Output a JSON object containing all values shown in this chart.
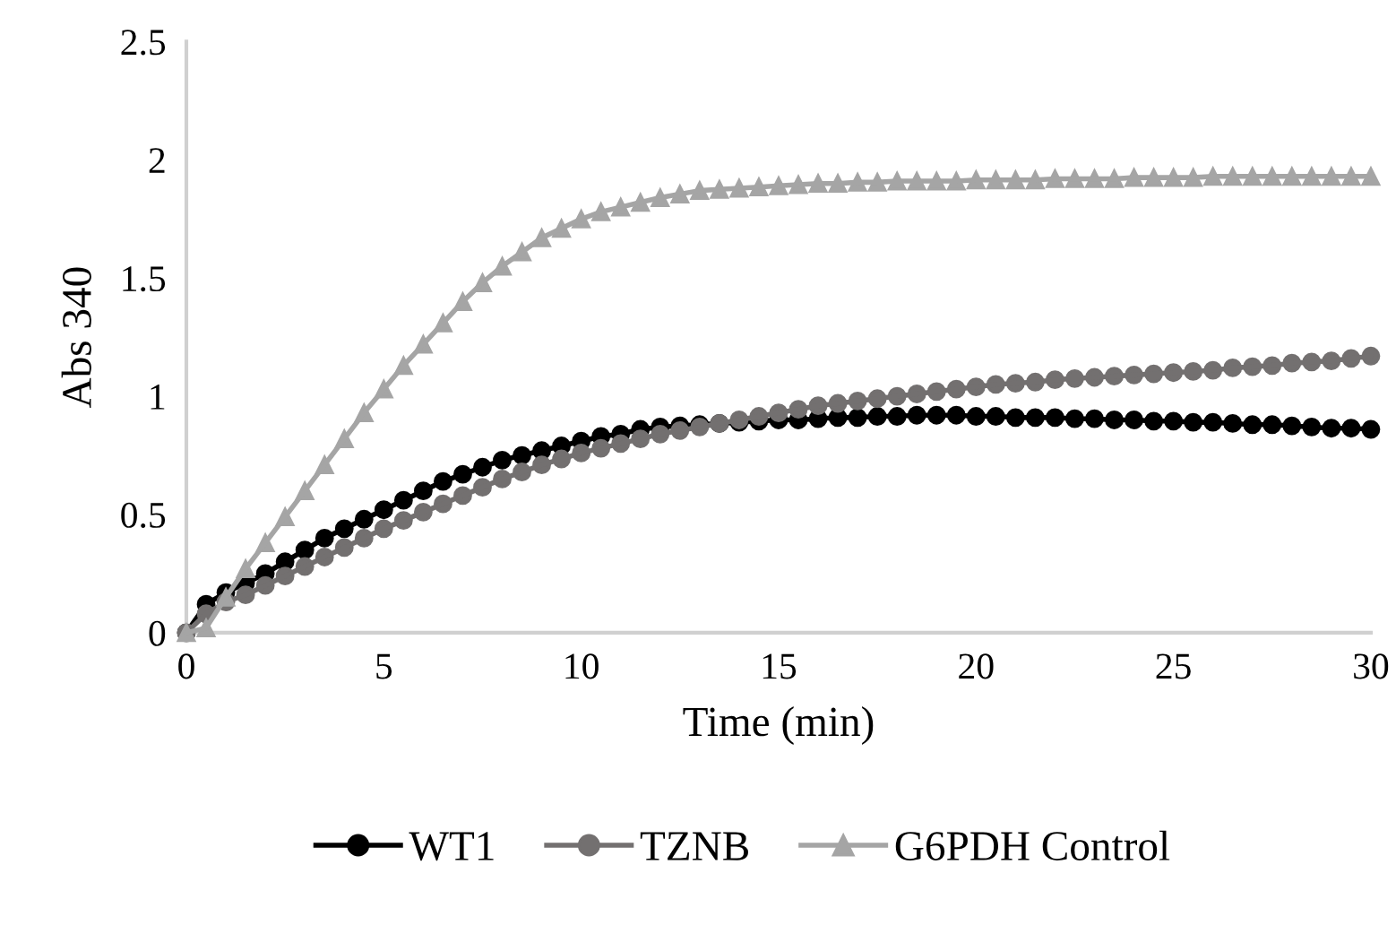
{
  "chart_data": {
    "type": "line",
    "xlabel": "Time (min)",
    "ylabel": "Abs 340",
    "x": [
      0,
      0.5,
      1,
      1.5,
      2,
      2.5,
      3,
      3.5,
      4,
      4.5,
      5,
      5.5,
      6,
      6.5,
      7,
      7.5,
      8,
      8.5,
      9,
      9.5,
      10,
      10.5,
      11,
      11.5,
      12,
      12.5,
      13,
      13.5,
      14,
      14.5,
      15,
      15.5,
      16,
      16.5,
      17,
      17.5,
      18,
      18.5,
      19,
      19.5,
      20,
      20.5,
      21,
      21.5,
      22,
      22.5,
      23,
      23.5,
      24,
      24.5,
      25,
      25.5,
      26,
      26.5,
      27,
      27.5,
      28,
      28.5,
      29,
      29.5,
      30
    ],
    "series": [
      {
        "name": "WT1",
        "color": "#000000",
        "marker": "circle",
        "values": [
          0,
          0.12,
          0.17,
          0.21,
          0.25,
          0.3,
          0.35,
          0.4,
          0.44,
          0.48,
          0.52,
          0.56,
          0.6,
          0.64,
          0.67,
          0.7,
          0.73,
          0.75,
          0.77,
          0.79,
          0.81,
          0.83,
          0.84,
          0.86,
          0.87,
          0.875,
          0.88,
          0.885,
          0.89,
          0.895,
          0.9,
          0.9,
          0.905,
          0.91,
          0.91,
          0.915,
          0.915,
          0.92,
          0.92,
          0.92,
          0.915,
          0.915,
          0.91,
          0.91,
          0.91,
          0.905,
          0.905,
          0.9,
          0.9,
          0.895,
          0.895,
          0.89,
          0.89,
          0.885,
          0.88,
          0.88,
          0.875,
          0.87,
          0.865,
          0.865,
          0.86
        ]
      },
      {
        "name": "TZNB",
        "color": "#737070",
        "marker": "circle",
        "values": [
          0,
          0.08,
          0.13,
          0.16,
          0.2,
          0.24,
          0.28,
          0.32,
          0.36,
          0.4,
          0.44,
          0.475,
          0.51,
          0.545,
          0.58,
          0.615,
          0.65,
          0.68,
          0.71,
          0.735,
          0.76,
          0.78,
          0.8,
          0.82,
          0.84,
          0.855,
          0.87,
          0.885,
          0.9,
          0.915,
          0.93,
          0.945,
          0.96,
          0.97,
          0.98,
          0.99,
          1.0,
          1.01,
          1.02,
          1.03,
          1.04,
          1.05,
          1.055,
          1.06,
          1.07,
          1.075,
          1.08,
          1.085,
          1.09,
          1.095,
          1.1,
          1.105,
          1.11,
          1.12,
          1.125,
          1.13,
          1.14,
          1.145,
          1.15,
          1.16,
          1.17
        ]
      },
      {
        "name": "G6PDH Control",
        "color": "#a5a5a5",
        "marker": "triangle",
        "values": [
          0,
          0.02,
          0.15,
          0.27,
          0.38,
          0.49,
          0.6,
          0.71,
          0.82,
          0.93,
          1.03,
          1.13,
          1.22,
          1.31,
          1.4,
          1.48,
          1.55,
          1.61,
          1.67,
          1.71,
          1.75,
          1.78,
          1.8,
          1.82,
          1.84,
          1.855,
          1.87,
          1.875,
          1.88,
          1.885,
          1.89,
          1.895,
          1.9,
          1.9,
          1.905,
          1.905,
          1.91,
          1.91,
          1.91,
          1.91,
          1.915,
          1.915,
          1.915,
          1.915,
          1.92,
          1.92,
          1.92,
          1.92,
          1.925,
          1.925,
          1.925,
          1.925,
          1.93,
          1.93,
          1.93,
          1.93,
          1.93,
          1.93,
          1.93,
          1.93,
          1.93
        ]
      }
    ],
    "xlim": [
      0,
      30
    ],
    "xticks": [
      0,
      5,
      10,
      15,
      20,
      25,
      30
    ],
    "ylim": [
      0,
      2.5
    ],
    "yticks": [
      0,
      0.5,
      1,
      1.5,
      2,
      2.5
    ],
    "grid": false,
    "legend": "bottom",
    "line_style": "solid"
  }
}
